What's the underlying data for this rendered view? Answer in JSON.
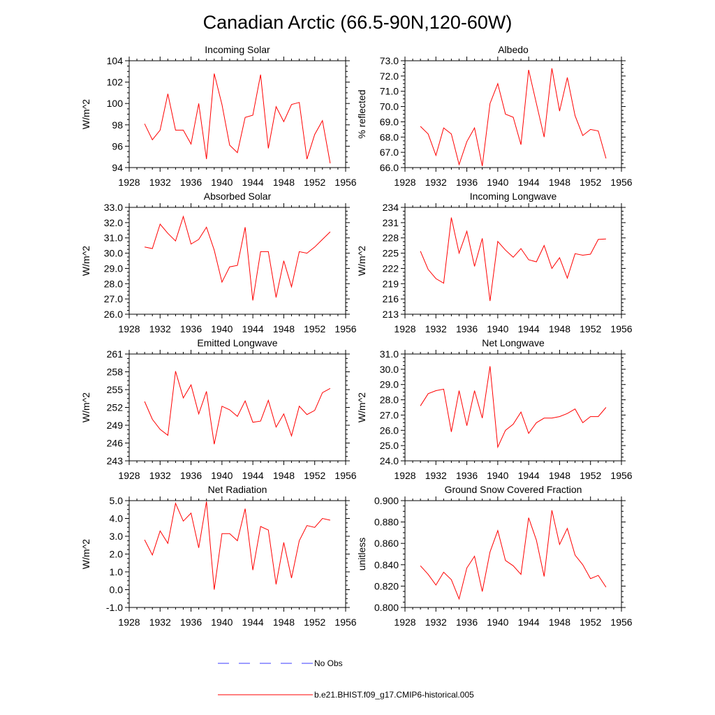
{
  "figure": {
    "title": "Canadian Arctic (66.5-90N,120-60W)"
  },
  "legend": {
    "entries": [
      {
        "label": "No Obs",
        "color": "#3b3bff",
        "style": "dashed"
      },
      {
        "label": "b.e21.BHIST.f09_g17.CMIP6-historical.005",
        "color": "#ff0000",
        "style": "solid"
      }
    ]
  },
  "chart_data": [
    {
      "type": "line",
      "title": "Incoming Solar",
      "ylabel": "W/m^2",
      "xlabel": "",
      "xlim": [
        1928,
        1956
      ],
      "ylim": [
        94,
        104
      ],
      "x_ticks": [
        1928,
        1932,
        1936,
        1940,
        1944,
        1948,
        1952,
        1956
      ],
      "y_ticks": [
        "94",
        "96",
        "98",
        "100",
        "102",
        "104"
      ],
      "y_tick_values": [
        94,
        96,
        98,
        100,
        102,
        104
      ],
      "grid": false,
      "x": [
        1930,
        1931,
        1932,
        1933,
        1934,
        1935,
        1936,
        1937,
        1938,
        1939,
        1940,
        1941,
        1942,
        1943,
        1944,
        1945,
        1946,
        1947,
        1948,
        1949,
        1950,
        1951,
        1952,
        1953,
        1954
      ],
      "series": [
        {
          "name": "b.e21.BHIST.f09_g17.CMIP6-historical.005",
          "color": "#ff0000",
          "values": [
            98.1,
            96.6,
            97.5,
            100.9,
            97.5,
            97.5,
            96.2,
            100.0,
            94.8,
            102.8,
            99.9,
            96.1,
            95.4,
            98.7,
            98.9,
            102.7,
            95.8,
            99.7,
            98.3,
            99.9,
            100.1,
            94.8,
            97.1,
            98.4,
            94.4
          ]
        }
      ]
    },
    {
      "type": "line",
      "title": "Albedo",
      "ylabel": "% reflected",
      "xlabel": "",
      "xlim": [
        1928,
        1956
      ],
      "ylim": [
        66,
        73
      ],
      "x_ticks": [
        1928,
        1932,
        1936,
        1940,
        1944,
        1948,
        1952,
        1956
      ],
      "y_ticks": [
        "66.0",
        "67.0",
        "68.0",
        "69.0",
        "70.0",
        "71.0",
        "72.0",
        "73.0"
      ],
      "y_tick_values": [
        66,
        67,
        68,
        69,
        70,
        71,
        72,
        73
      ],
      "grid": false,
      "x": [
        1930,
        1931,
        1932,
        1933,
        1934,
        1935,
        1936,
        1937,
        1938,
        1939,
        1940,
        1941,
        1942,
        1943,
        1944,
        1945,
        1946,
        1947,
        1948,
        1949,
        1950,
        1951,
        1952,
        1953,
        1954
      ],
      "series": [
        {
          "name": "b.e21.BHIST.f09_g17.CMIP6-historical.005",
          "color": "#ff0000",
          "values": [
            68.7,
            68.2,
            66.8,
            68.6,
            68.2,
            66.2,
            67.7,
            68.6,
            66.1,
            70.2,
            71.5,
            69.5,
            69.3,
            67.5,
            72.4,
            70.2,
            68.0,
            72.5,
            69.7,
            71.9,
            69.4,
            68.1,
            68.5,
            68.4,
            66.6
          ]
        }
      ]
    },
    {
      "type": "line",
      "title": "Absorbed Solar",
      "ylabel": "W/m^2",
      "xlabel": "",
      "xlim": [
        1928,
        1956
      ],
      "ylim": [
        26,
        33
      ],
      "x_ticks": [
        1928,
        1932,
        1936,
        1940,
        1944,
        1948,
        1952,
        1956
      ],
      "y_ticks": [
        "26.0",
        "27.0",
        "28.0",
        "29.0",
        "30.0",
        "31.0",
        "32.0",
        "33.0"
      ],
      "y_tick_values": [
        26,
        27,
        28,
        29,
        30,
        31,
        32,
        33
      ],
      "grid": false,
      "x": [
        1930,
        1931,
        1932,
        1933,
        1934,
        1935,
        1936,
        1937,
        1938,
        1939,
        1940,
        1941,
        1942,
        1943,
        1944,
        1945,
        1946,
        1947,
        1948,
        1949,
        1950,
        1951,
        1952,
        1953,
        1954
      ],
      "series": [
        {
          "name": "b.e21.BHIST.f09_g17.CMIP6-historical.005",
          "color": "#ff0000",
          "values": [
            30.4,
            30.3,
            31.9,
            31.3,
            30.8,
            32.4,
            30.6,
            30.9,
            31.7,
            30.2,
            28.1,
            29.1,
            29.2,
            31.7,
            26.9,
            30.1,
            30.1,
            27.1,
            29.5,
            27.8,
            30.1,
            30.0,
            30.4,
            30.9,
            31.4
          ]
        }
      ]
    },
    {
      "type": "line",
      "title": "Incoming Longwave",
      "ylabel": "W/m^2",
      "xlabel": "",
      "xlim": [
        1928,
        1956
      ],
      "ylim": [
        213,
        234
      ],
      "x_ticks": [
        1928,
        1932,
        1936,
        1940,
        1944,
        1948,
        1952,
        1956
      ],
      "y_ticks": [
        "213",
        "216",
        "219",
        "222",
        "225",
        "228",
        "231",
        "234"
      ],
      "y_tick_values": [
        213,
        216,
        219,
        222,
        225,
        228,
        231,
        234
      ],
      "grid": false,
      "x": [
        1930,
        1931,
        1932,
        1933,
        1934,
        1935,
        1936,
        1937,
        1938,
        1939,
        1940,
        1941,
        1942,
        1943,
        1944,
        1945,
        1946,
        1947,
        1948,
        1949,
        1950,
        1951,
        1952,
        1953,
        1954
      ],
      "series": [
        {
          "name": "b.e21.BHIST.f09_g17.CMIP6-historical.005",
          "color": "#ff0000",
          "values": [
            225.4,
            221.8,
            220.0,
            219.1,
            232.0,
            225.0,
            229.3,
            222.4,
            227.9,
            215.6,
            227.3,
            225.6,
            224.2,
            225.9,
            223.7,
            223.3,
            226.5,
            222.0,
            224.1,
            220.1,
            224.9,
            224.6,
            224.8,
            227.7,
            227.8
          ]
        }
      ]
    },
    {
      "type": "line",
      "title": "Emitted Longwave",
      "ylabel": "W/m^2",
      "xlabel": "",
      "xlim": [
        1928,
        1956
      ],
      "ylim": [
        243,
        261
      ],
      "x_ticks": [
        1928,
        1932,
        1936,
        1940,
        1944,
        1948,
        1952,
        1956
      ],
      "y_ticks": [
        "243",
        "246",
        "249",
        "252",
        "255",
        "258",
        "261"
      ],
      "y_tick_values": [
        243,
        246,
        249,
        252,
        255,
        258,
        261
      ],
      "grid": false,
      "x": [
        1930,
        1931,
        1932,
        1933,
        1934,
        1935,
        1936,
        1937,
        1938,
        1939,
        1940,
        1941,
        1942,
        1943,
        1944,
        1945,
        1946,
        1947,
        1948,
        1949,
        1950,
        1951,
        1952,
        1953,
        1954
      ],
      "series": [
        {
          "name": "b.e21.BHIST.f09_g17.CMIP6-historical.005",
          "color": "#ff0000",
          "values": [
            253.0,
            250.0,
            248.3,
            247.3,
            258.1,
            253.6,
            255.8,
            250.9,
            254.7,
            245.8,
            252.2,
            251.6,
            250.5,
            253.1,
            249.5,
            249.7,
            253.2,
            248.7,
            250.9,
            247.2,
            252.2,
            250.8,
            251.5,
            254.5,
            255.2
          ]
        }
      ]
    },
    {
      "type": "line",
      "title": "Net Longwave",
      "ylabel": "W/m^2",
      "xlabel": "",
      "xlim": [
        1928,
        1956
      ],
      "ylim": [
        24,
        31
      ],
      "x_ticks": [
        1928,
        1932,
        1936,
        1940,
        1944,
        1948,
        1952,
        1956
      ],
      "y_ticks": [
        "24.0",
        "25.0",
        "26.0",
        "27.0",
        "28.0",
        "29.0",
        "30.0",
        "31.0"
      ],
      "y_tick_values": [
        24,
        25,
        26,
        27,
        28,
        29,
        30,
        31
      ],
      "grid": false,
      "x": [
        1930,
        1931,
        1932,
        1933,
        1934,
        1935,
        1936,
        1937,
        1938,
        1939,
        1940,
        1941,
        1942,
        1943,
        1944,
        1945,
        1946,
        1947,
        1948,
        1949,
        1950,
        1951,
        1952,
        1953,
        1954
      ],
      "series": [
        {
          "name": "b.e21.BHIST.f09_g17.CMIP6-historical.005",
          "color": "#ff0000",
          "values": [
            27.6,
            28.4,
            28.6,
            28.7,
            25.9,
            28.6,
            26.3,
            28.6,
            26.8,
            30.2,
            24.9,
            26.0,
            26.4,
            27.2,
            25.8,
            26.5,
            26.8,
            26.8,
            26.9,
            27.1,
            27.4,
            26.5,
            26.9,
            26.9,
            27.5
          ]
        }
      ]
    },
    {
      "type": "line",
      "title": "Net Radiation",
      "ylabel": "W/m^2",
      "xlabel": "",
      "xlim": [
        1928,
        1956
      ],
      "ylim": [
        -1,
        5
      ],
      "x_ticks": [
        1928,
        1932,
        1936,
        1940,
        1944,
        1948,
        1952,
        1956
      ],
      "y_ticks": [
        "-1.0",
        "0.0",
        "1.0",
        "2.0",
        "3.0",
        "4.0",
        "5.0"
      ],
      "y_tick_values": [
        -1,
        0,
        1,
        2,
        3,
        4,
        5
      ],
      "grid": false,
      "x": [
        1930,
        1931,
        1932,
        1933,
        1934,
        1935,
        1936,
        1937,
        1938,
        1939,
        1940,
        1941,
        1942,
        1943,
        1944,
        1945,
        1946,
        1947,
        1948,
        1949,
        1950,
        1951,
        1952,
        1953,
        1954
      ],
      "series": [
        {
          "name": "b.e21.BHIST.f09_g17.CMIP6-historical.005",
          "color": "#ff0000",
          "values": [
            2.8,
            1.95,
            3.3,
            2.6,
            4.85,
            3.85,
            4.3,
            2.35,
            4.95,
            0.0,
            3.15,
            3.15,
            2.75,
            4.55,
            1.1,
            3.55,
            3.35,
            0.3,
            2.65,
            0.65,
            2.75,
            3.6,
            3.5,
            4.0,
            3.9
          ]
        }
      ]
    },
    {
      "type": "line",
      "title": "Ground Snow Covered Fraction",
      "ylabel": "unitless",
      "xlabel": "",
      "xlim": [
        1928,
        1956
      ],
      "ylim": [
        0.8,
        0.9
      ],
      "x_ticks": [
        1928,
        1932,
        1936,
        1940,
        1944,
        1948,
        1952,
        1956
      ],
      "y_ticks": [
        "0.800",
        "0.820",
        "0.840",
        "0.860",
        "0.880",
        "0.900"
      ],
      "y_tick_values": [
        0.8,
        0.82,
        0.84,
        0.86,
        0.88,
        0.9
      ],
      "grid": false,
      "x": [
        1930,
        1931,
        1932,
        1933,
        1934,
        1935,
        1936,
        1937,
        1938,
        1939,
        1940,
        1941,
        1942,
        1943,
        1944,
        1945,
        1946,
        1947,
        1948,
        1949,
        1950,
        1951,
        1952,
        1953,
        1954
      ],
      "series": [
        {
          "name": "b.e21.BHIST.f09_g17.CMIP6-historical.005",
          "color": "#ff0000",
          "values": [
            0.839,
            0.831,
            0.821,
            0.833,
            0.826,
            0.808,
            0.837,
            0.848,
            0.815,
            0.852,
            0.872,
            0.844,
            0.839,
            0.831,
            0.884,
            0.863,
            0.829,
            0.891,
            0.859,
            0.874,
            0.849,
            0.84,
            0.827,
            0.83,
            0.819
          ]
        }
      ]
    }
  ]
}
